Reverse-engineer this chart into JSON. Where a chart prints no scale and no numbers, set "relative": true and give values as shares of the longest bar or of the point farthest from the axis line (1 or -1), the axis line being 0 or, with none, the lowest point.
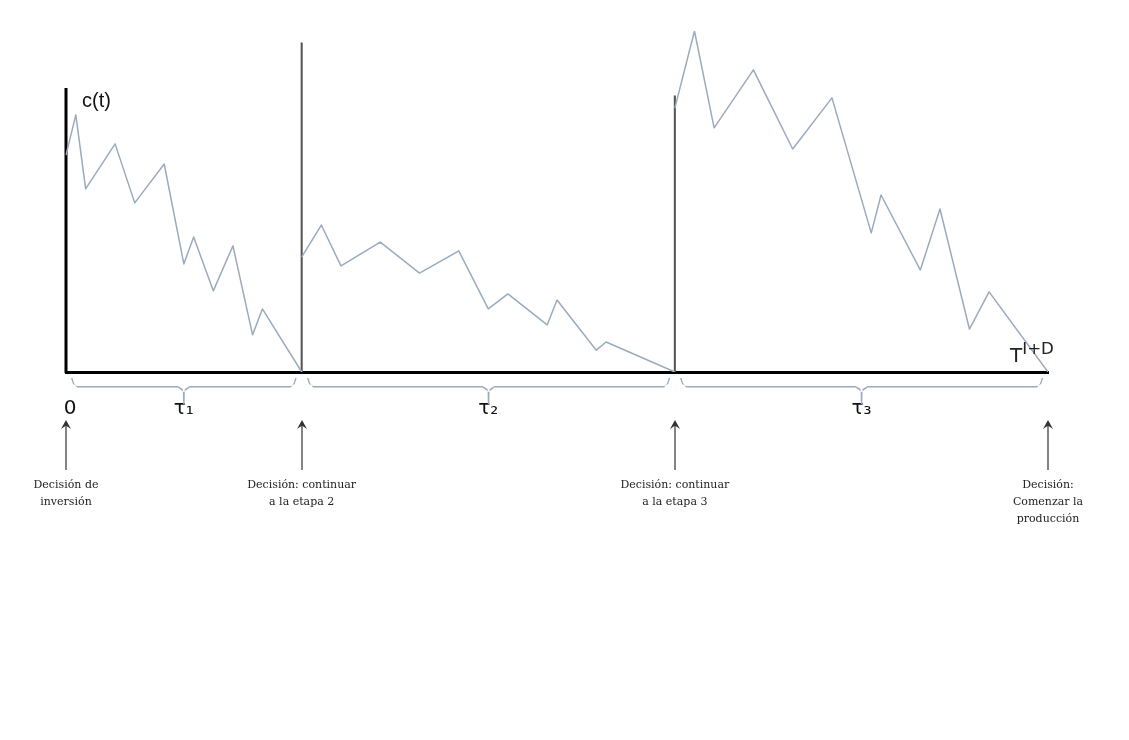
{
  "chart_data": {
    "type": "line",
    "relative": true,
    "ylabel": "c(t)",
    "categories": [
      "0",
      null,
      null,
      null,
      null,
      null,
      null,
      null,
      null,
      null,
      null,
      null,
      "τ₁",
      null,
      null,
      null,
      null,
      null,
      null,
      null,
      null,
      null,
      null,
      null,
      null,
      null,
      null,
      null,
      null,
      null,
      null,
      null,
      null,
      null,
      null,
      null,
      null,
      null,
      null,
      null,
      null,
      null,
      null,
      "τ₂",
      null,
      null,
      null,
      null,
      null,
      null,
      null,
      null,
      null,
      null,
      null,
      null,
      null,
      null,
      null,
      null,
      null,
      null,
      null,
      null,
      null,
      null,
      null,
      null,
      null,
      null,
      null,
      null,
      null,
      null,
      null,
      null,
      null,
      null,
      null,
      null,
      null,
      "τ₃",
      null,
      null,
      null,
      null,
      null,
      null,
      null,
      null,
      null,
      null,
      null,
      null,
      null,
      null,
      null,
      null,
      null,
      null,
      null
    ],
    "series": [
      {
        "color": "#9aabbd",
        "values": [
          0.636,
          0.754,
          0.537,
          null,
          null,
          0.669,
          null,
          0.496,
          null,
          null,
          0.61,
          null,
          0.317,
          0.396,
          null,
          0.238,
          null,
          0.37,
          null,
          0.109,
          0.185,
          null,
          null,
          null,
          0,
          null,
          null,
          null,
          null,
          null,
          null,
          null,
          null,
          null,
          null,
          null,
          null,
          null,
          null,
          null,
          null,
          null,
          null,
          null,
          null,
          null,
          null,
          null,
          null,
          null,
          null,
          null,
          null,
          null,
          null,
          null,
          null,
          null,
          null,
          null,
          null,
          null,
          null,
          null,
          null,
          null,
          null,
          null,
          null,
          null,
          null,
          null,
          null,
          null,
          null,
          null,
          null,
          null,
          null,
          null,
          null,
          null,
          null,
          null,
          null,
          null,
          null,
          null,
          null,
          null,
          null,
          null,
          null,
          null,
          null,
          null,
          null,
          null,
          null,
          null,
          null
        ]
      },
      {
        "color": "#9aabbd",
        "values": [
          null,
          null,
          null,
          null,
          null,
          null,
          null,
          null,
          null,
          null,
          null,
          null,
          null,
          null,
          null,
          null,
          null,
          null,
          null,
          null,
          null,
          null,
          null,
          null,
          0.337,
          null,
          0.431,
          null,
          0.311,
          null,
          null,
          null,
          0.381,
          null,
          null,
          null,
          0.29,
          null,
          null,
          null,
          0.355,
          null,
          null,
          0.185,
          null,
          0.229,
          null,
          null,
          null,
          0.138,
          0.211,
          null,
          null,
          null,
          0.064,
          0.088,
          null,
          null,
          null,
          null,
          null,
          null,
          0,
          null,
          null,
          null,
          null,
          null,
          null,
          null,
          null,
          null,
          null,
          null,
          null,
          null,
          null,
          null,
          null,
          null,
          null,
          null,
          null,
          null,
          null,
          null,
          null,
          null,
          null,
          null,
          null,
          null,
          null,
          null,
          null,
          null,
          null,
          null,
          null,
          null,
          null
        ]
      },
      {
        "color": "#9aabbd",
        "values": [
          null,
          null,
          null,
          null,
          null,
          null,
          null,
          null,
          null,
          null,
          null,
          null,
          null,
          null,
          null,
          null,
          null,
          null,
          null,
          null,
          null,
          null,
          null,
          null,
          null,
          null,
          null,
          null,
          null,
          null,
          null,
          null,
          null,
          null,
          null,
          null,
          null,
          null,
          null,
          null,
          null,
          null,
          null,
          null,
          null,
          null,
          null,
          null,
          null,
          null,
          null,
          null,
          null,
          null,
          null,
          null,
          null,
          null,
          null,
          null,
          null,
          null,
          0.774,
          null,
          1,
          null,
          0.716,
          null,
          null,
          null,
          0.886,
          null,
          null,
          null,
          0.654,
          null,
          null,
          null,
          0.804,
          null,
          null,
          null,
          0.408,
          0.519,
          null,
          null,
          null,
          0.299,
          null,
          0.478,
          null,
          null,
          0.126,
          null,
          0.235,
          null,
          null,
          null,
          null,
          null,
          0
        ]
      },
      {
        "type": "bar",
        "color": "#555555",
        "values": [
          null,
          null,
          null,
          null,
          null,
          null,
          null,
          null,
          null,
          null,
          null,
          null,
          null,
          null,
          null,
          null,
          null,
          null,
          null,
          null,
          null,
          null,
          null,
          null,
          0.965,
          null,
          null,
          null,
          null,
          null,
          null,
          null,
          null,
          null,
          null,
          null,
          null,
          null,
          null,
          null,
          null,
          null,
          null,
          null,
          null,
          null,
          null,
          null,
          null,
          null,
          null,
          null,
          null,
          null,
          null,
          null,
          null,
          null,
          null,
          null,
          null,
          null,
          0.81,
          null,
          null,
          null,
          null,
          null,
          null,
          null,
          null,
          null,
          null,
          null,
          null,
          null,
          null,
          null,
          null,
          null,
          null,
          null,
          null,
          null,
          null,
          null,
          null,
          null,
          null,
          null,
          null,
          null,
          null,
          null,
          null,
          null,
          null,
          null,
          null,
          null,
          null
        ]
      }
    ],
    "annotations": [
      "Decisión de inversión",
      "Decisión: continuar a la etapa 2",
      "Decisión: continuar a la etapa 3",
      "Decisión: Comenzar la producción",
      "T$^{I+D}$"
    ],
    "grid": false,
    "legend": false,
    "marker": "none",
    "line_style": "solid"
  }
}
